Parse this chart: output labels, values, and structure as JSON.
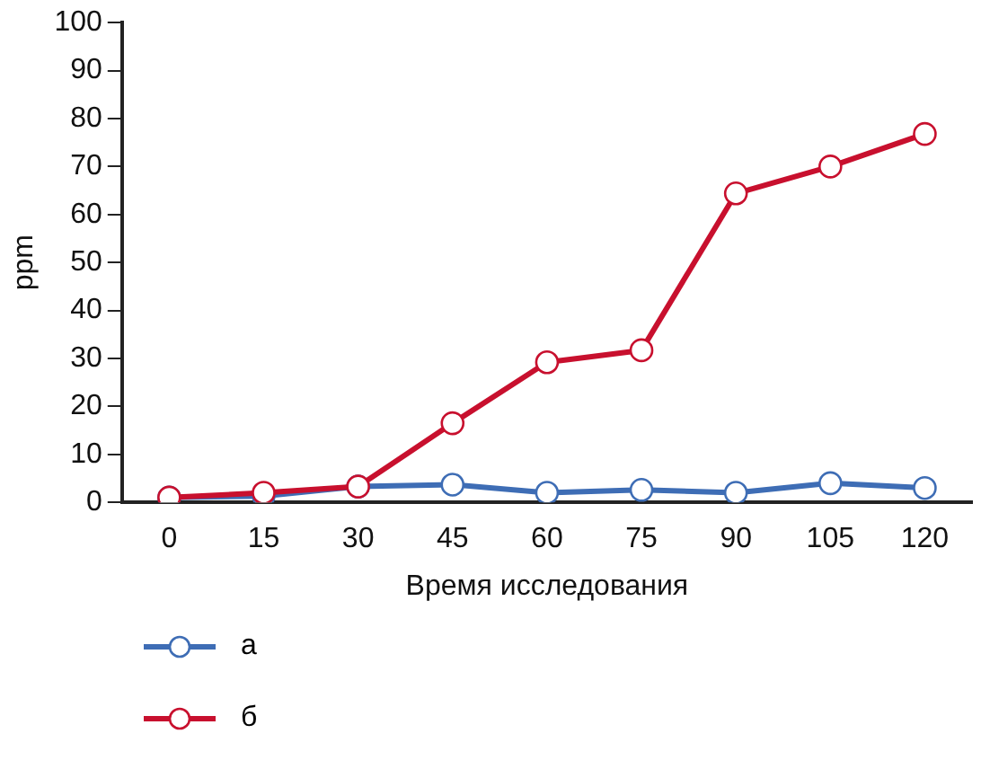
{
  "chart_data": {
    "type": "line",
    "xlabel": "Время исследования",
    "ylabel": "ppm",
    "categories": [
      "0",
      "15",
      "30",
      "45",
      "60",
      "75",
      "90",
      "105",
      "120"
    ],
    "series": [
      {
        "name": "а",
        "color": "#3e6db5",
        "values": [
          1,
          1.3,
          3.3,
          3.7,
          2,
          2.6,
          2,
          4,
          3
        ]
      },
      {
        "name": "б",
        "color": "#c8102e",
        "values": [
          1,
          2,
          3.3,
          16.5,
          29.2,
          31.7,
          64.4,
          70,
          76.8
        ]
      }
    ],
    "ylim": [
      0,
      100
    ],
    "yticks": [
      0,
      10,
      20,
      30,
      40,
      50,
      60,
      70,
      80,
      90,
      100
    ],
    "grid": false,
    "legend": "bottom left",
    "marker": "circle",
    "line_style": "solid"
  }
}
